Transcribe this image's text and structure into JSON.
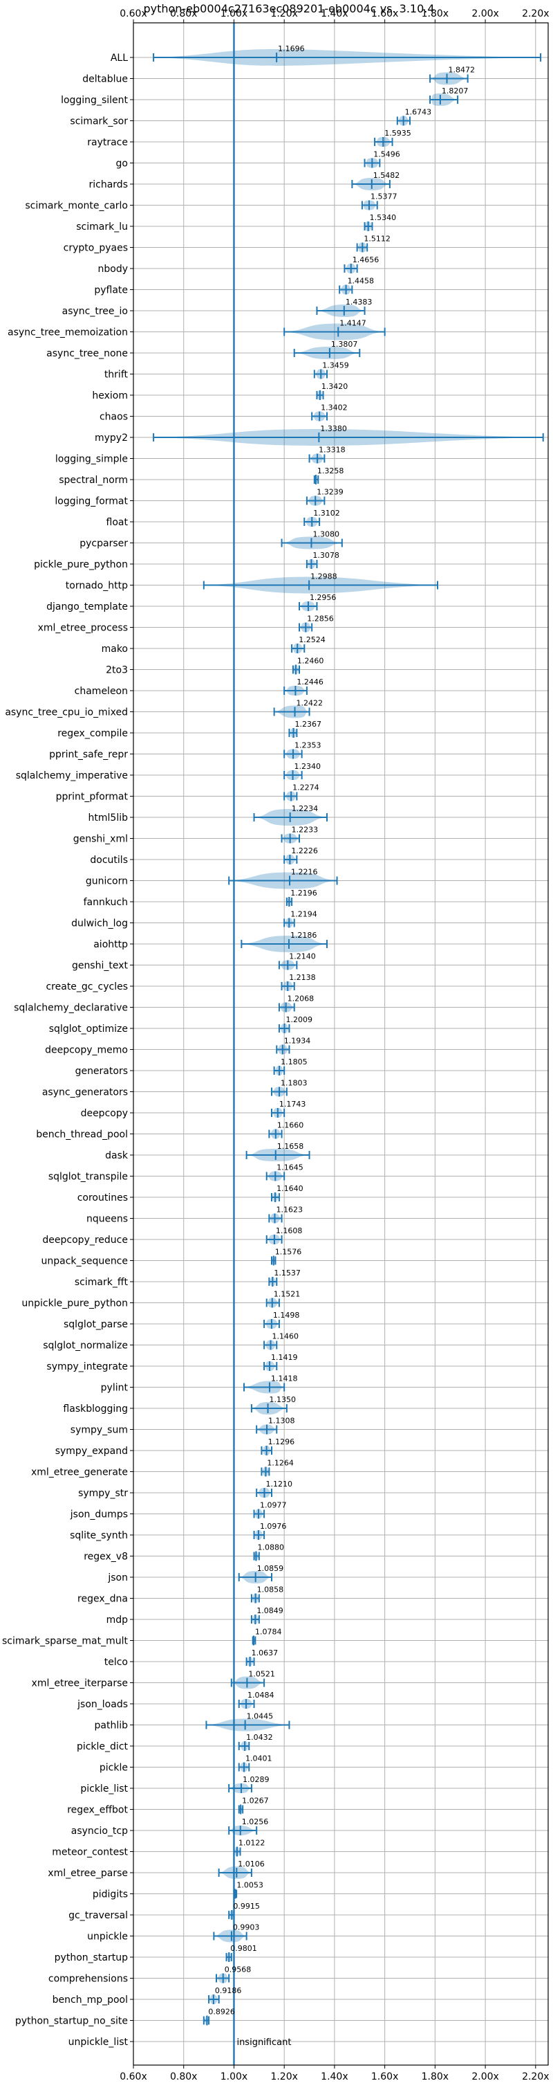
{
  "chart_data": {
    "type": "violin",
    "title": "python-eb0004c27163ec089201-eb0004c vs. 3.10.4",
    "xlim": [
      0.6,
      2.25
    ],
    "x_ticks": [
      0.6,
      0.8,
      1.0,
      1.2,
      1.4,
      1.6,
      1.8,
      2.0,
      2.2
    ],
    "x_tick_labels": [
      "0.60x",
      "0.80x",
      "1.00x",
      "1.20x",
      "1.40x",
      "1.60x",
      "1.80x",
      "2.00x",
      "2.20x"
    ],
    "reference_line": 1.0,
    "grid": true,
    "colors": {
      "series": "#1f77b4",
      "grid": "#b0b0b0"
    },
    "benchmarks": [
      {
        "name": "ALL",
        "value": 1.1696,
        "min": 0.68,
        "max": 2.22,
        "spread": 0.22
      },
      {
        "name": "deltablue",
        "value": 1.8472,
        "min": 1.78,
        "max": 1.93,
        "spread": 0.06
      },
      {
        "name": "logging_silent",
        "value": 1.8207,
        "min": 1.78,
        "max": 1.89,
        "spread": 0.05
      },
      {
        "name": "scimark_sor",
        "value": 1.6743,
        "min": 1.65,
        "max": 1.7,
        "spread": 0.02
      },
      {
        "name": "raytrace",
        "value": 1.5935,
        "min": 1.56,
        "max": 1.63,
        "spread": 0.03
      },
      {
        "name": "go",
        "value": 1.5496,
        "min": 1.52,
        "max": 1.58,
        "spread": 0.03
      },
      {
        "name": "richards",
        "value": 1.5482,
        "min": 1.47,
        "max": 1.62,
        "spread": 0.06
      },
      {
        "name": "scimark_monte_carlo",
        "value": 1.5377,
        "min": 1.51,
        "max": 1.57,
        "spread": 0.03
      },
      {
        "name": "scimark_lu",
        "value": 1.534,
        "min": 1.52,
        "max": 1.55,
        "spread": 0.015
      },
      {
        "name": "crypto_pyaes",
        "value": 1.5112,
        "min": 1.49,
        "max": 1.53,
        "spread": 0.02
      },
      {
        "name": "nbody",
        "value": 1.4656,
        "min": 1.44,
        "max": 1.49,
        "spread": 0.02
      },
      {
        "name": "pyflate",
        "value": 1.4458,
        "min": 1.42,
        "max": 1.47,
        "spread": 0.02
      },
      {
        "name": "async_tree_io",
        "value": 1.4383,
        "min": 1.33,
        "max": 1.52,
        "spread": 0.07
      },
      {
        "name": "async_tree_memoization",
        "value": 1.4147,
        "min": 1.2,
        "max": 1.6,
        "spread": 0.14
      },
      {
        "name": "async_tree_none",
        "value": 1.3807,
        "min": 1.24,
        "max": 1.5,
        "spread": 0.1
      },
      {
        "name": "thrift",
        "value": 1.3459,
        "min": 1.32,
        "max": 1.37,
        "spread": 0.02
      },
      {
        "name": "hexiom",
        "value": 1.342,
        "min": 1.33,
        "max": 1.355,
        "spread": 0.01
      },
      {
        "name": "chaos",
        "value": 1.3402,
        "min": 1.31,
        "max": 1.37,
        "spread": 0.025
      },
      {
        "name": "mypy2",
        "value": 1.338,
        "min": 0.68,
        "max": 2.23,
        "spread": 0.35
      },
      {
        "name": "logging_simple",
        "value": 1.3318,
        "min": 1.3,
        "max": 1.36,
        "spread": 0.025
      },
      {
        "name": "spectral_norm",
        "value": 1.3258,
        "min": 1.32,
        "max": 1.335,
        "spread": 0.007
      },
      {
        "name": "logging_format",
        "value": 1.3239,
        "min": 1.29,
        "max": 1.36,
        "spread": 0.03
      },
      {
        "name": "float",
        "value": 1.3102,
        "min": 1.28,
        "max": 1.34,
        "spread": 0.025
      },
      {
        "name": "pycparser",
        "value": 1.308,
        "min": 1.19,
        "max": 1.43,
        "spread": 0.1
      },
      {
        "name": "pickle_pure_python",
        "value": 1.3078,
        "min": 1.29,
        "max": 1.33,
        "spread": 0.015
      },
      {
        "name": "tornado_http",
        "value": 1.2988,
        "min": 0.88,
        "max": 1.81,
        "spread": 0.22
      },
      {
        "name": "django_template",
        "value": 1.2956,
        "min": 1.26,
        "max": 1.33,
        "spread": 0.03
      },
      {
        "name": "xml_etree_process",
        "value": 1.2856,
        "min": 1.26,
        "max": 1.31,
        "spread": 0.02
      },
      {
        "name": "mako",
        "value": 1.2524,
        "min": 1.23,
        "max": 1.28,
        "spread": 0.02
      },
      {
        "name": "2to3",
        "value": 1.246,
        "min": 1.235,
        "max": 1.26,
        "spread": 0.01
      },
      {
        "name": "chameleon",
        "value": 1.2446,
        "min": 1.2,
        "max": 1.29,
        "spread": 0.04
      },
      {
        "name": "async_tree_cpu_io_mixed",
        "value": 1.2422,
        "min": 1.16,
        "max": 1.3,
        "spread": 0.06
      },
      {
        "name": "regex_compile",
        "value": 1.2367,
        "min": 1.22,
        "max": 1.25,
        "spread": 0.012
      },
      {
        "name": "pprint_safe_repr",
        "value": 1.2353,
        "min": 1.2,
        "max": 1.27,
        "spread": 0.03
      },
      {
        "name": "sqlalchemy_imperative",
        "value": 1.234,
        "min": 1.2,
        "max": 1.27,
        "spread": 0.03
      },
      {
        "name": "pprint_pformat",
        "value": 1.2274,
        "min": 1.2,
        "max": 1.25,
        "spread": 0.02
      },
      {
        "name": "html5lib",
        "value": 1.2234,
        "min": 1.08,
        "max": 1.37,
        "spread": 0.11
      },
      {
        "name": "genshi_xml",
        "value": 1.2233,
        "min": 1.19,
        "max": 1.26,
        "spread": 0.03
      },
      {
        "name": "docutils",
        "value": 1.2226,
        "min": 1.2,
        "max": 1.25,
        "spread": 0.02
      },
      {
        "name": "gunicorn",
        "value": 1.2216,
        "min": 0.98,
        "max": 1.41,
        "spread": 0.15
      },
      {
        "name": "fannkuch",
        "value": 1.2196,
        "min": 1.21,
        "max": 1.23,
        "spread": 0.008
      },
      {
        "name": "dulwich_log",
        "value": 1.2194,
        "min": 1.2,
        "max": 1.24,
        "spread": 0.015
      },
      {
        "name": "aiohttp",
        "value": 1.2186,
        "min": 1.03,
        "max": 1.37,
        "spread": 0.12
      },
      {
        "name": "genshi_text",
        "value": 1.214,
        "min": 1.18,
        "max": 1.25,
        "spread": 0.03
      },
      {
        "name": "create_gc_cycles",
        "value": 1.2138,
        "min": 1.19,
        "max": 1.24,
        "spread": 0.02
      },
      {
        "name": "sqlalchemy_declarative",
        "value": 1.2068,
        "min": 1.18,
        "max": 1.24,
        "spread": 0.025
      },
      {
        "name": "sqlglot_optimize",
        "value": 1.2009,
        "min": 1.18,
        "max": 1.22,
        "spread": 0.015
      },
      {
        "name": "deepcopy_memo",
        "value": 1.1934,
        "min": 1.17,
        "max": 1.22,
        "spread": 0.02
      },
      {
        "name": "generators",
        "value": 1.1805,
        "min": 1.16,
        "max": 1.2,
        "spread": 0.015
      },
      {
        "name": "async_generators",
        "value": 1.1803,
        "min": 1.15,
        "max": 1.21,
        "spread": 0.025
      },
      {
        "name": "deepcopy",
        "value": 1.1743,
        "min": 1.15,
        "max": 1.2,
        "spread": 0.02
      },
      {
        "name": "bench_thread_pool",
        "value": 1.166,
        "min": 1.14,
        "max": 1.19,
        "spread": 0.02
      },
      {
        "name": "dask",
        "value": 1.1658,
        "min": 1.05,
        "max": 1.3,
        "spread": 0.1
      },
      {
        "name": "sqlglot_transpile",
        "value": 1.1645,
        "min": 1.13,
        "max": 1.2,
        "spread": 0.03
      },
      {
        "name": "coroutines",
        "value": 1.164,
        "min": 1.15,
        "max": 1.18,
        "spread": 0.01
      },
      {
        "name": "nqueens",
        "value": 1.1623,
        "min": 1.14,
        "max": 1.19,
        "spread": 0.02
      },
      {
        "name": "deepcopy_reduce",
        "value": 1.1608,
        "min": 1.13,
        "max": 1.19,
        "spread": 0.025
      },
      {
        "name": "unpack_sequence",
        "value": 1.1576,
        "min": 1.15,
        "max": 1.165,
        "spread": 0.006
      },
      {
        "name": "scimark_fft",
        "value": 1.1537,
        "min": 1.14,
        "max": 1.17,
        "spread": 0.01
      },
      {
        "name": "unpickle_pure_python",
        "value": 1.1521,
        "min": 1.13,
        "max": 1.18,
        "spread": 0.02
      },
      {
        "name": "sqlglot_parse",
        "value": 1.1498,
        "min": 1.12,
        "max": 1.18,
        "spread": 0.025
      },
      {
        "name": "sqlglot_normalize",
        "value": 1.146,
        "min": 1.12,
        "max": 1.17,
        "spread": 0.02
      },
      {
        "name": "sympy_integrate",
        "value": 1.1419,
        "min": 1.12,
        "max": 1.17,
        "spread": 0.02
      },
      {
        "name": "pylint",
        "value": 1.1418,
        "min": 1.04,
        "max": 1.2,
        "spread": 0.06
      },
      {
        "name": "flaskblogging",
        "value": 1.135,
        "min": 1.07,
        "max": 1.21,
        "spread": 0.05
      },
      {
        "name": "sympy_sum",
        "value": 1.1308,
        "min": 1.09,
        "max": 1.17,
        "spread": 0.03
      },
      {
        "name": "sympy_expand",
        "value": 1.1296,
        "min": 1.11,
        "max": 1.15,
        "spread": 0.015
      },
      {
        "name": "xml_etree_generate",
        "value": 1.1264,
        "min": 1.11,
        "max": 1.14,
        "spread": 0.012
      },
      {
        "name": "sympy_str",
        "value": 1.121,
        "min": 1.09,
        "max": 1.15,
        "spread": 0.025
      },
      {
        "name": "json_dumps",
        "value": 1.0977,
        "min": 1.08,
        "max": 1.12,
        "spread": 0.015
      },
      {
        "name": "sqlite_synth",
        "value": 1.0976,
        "min": 1.08,
        "max": 1.12,
        "spread": 0.015
      },
      {
        "name": "regex_v8",
        "value": 1.088,
        "min": 1.08,
        "max": 1.1,
        "spread": 0.008
      },
      {
        "name": "json",
        "value": 1.0859,
        "min": 1.02,
        "max": 1.15,
        "spread": 0.05
      },
      {
        "name": "regex_dna",
        "value": 1.0858,
        "min": 1.07,
        "max": 1.1,
        "spread": 0.012
      },
      {
        "name": "mdp",
        "value": 1.0849,
        "min": 1.07,
        "max": 1.1,
        "spread": 0.01
      },
      {
        "name": "scimark_sparse_mat_mult",
        "value": 1.0784,
        "min": 1.075,
        "max": 1.085,
        "spread": 0.004
      },
      {
        "name": "telco",
        "value": 1.0637,
        "min": 1.05,
        "max": 1.08,
        "spread": 0.01
      },
      {
        "name": "xml_etree_iterparse",
        "value": 1.0521,
        "min": 0.99,
        "max": 1.12,
        "spread": 0.05
      },
      {
        "name": "json_loads",
        "value": 1.0484,
        "min": 1.02,
        "max": 1.08,
        "spread": 0.025
      },
      {
        "name": "pathlib",
        "value": 1.0445,
        "min": 0.89,
        "max": 1.22,
        "spread": 0.09
      },
      {
        "name": "pickle_dict",
        "value": 1.0432,
        "min": 1.02,
        "max": 1.06,
        "spread": 0.015
      },
      {
        "name": "pickle",
        "value": 1.0401,
        "min": 1.02,
        "max": 1.06,
        "spread": 0.015
      },
      {
        "name": "pickle_list",
        "value": 1.0289,
        "min": 0.98,
        "max": 1.07,
        "spread": 0.035
      },
      {
        "name": "regex_effbot",
        "value": 1.0267,
        "min": 1.02,
        "max": 1.035,
        "spread": 0.006
      },
      {
        "name": "asyncio_tcp",
        "value": 1.0256,
        "min": 0.98,
        "max": 1.09,
        "spread": 0.04
      },
      {
        "name": "meteor_contest",
        "value": 1.0122,
        "min": 1.0,
        "max": 1.025,
        "spread": 0.01
      },
      {
        "name": "xml_etree_parse",
        "value": 1.0106,
        "min": 0.94,
        "max": 1.07,
        "spread": 0.05
      },
      {
        "name": "pidigits",
        "value": 1.0053,
        "min": 1.0,
        "max": 1.01,
        "spread": 0.004
      },
      {
        "name": "gc_traversal",
        "value": 0.9915,
        "min": 0.98,
        "max": 1.0,
        "spread": 0.008
      },
      {
        "name": "unpickle",
        "value": 0.9903,
        "min": 0.92,
        "max": 1.05,
        "spread": 0.05
      },
      {
        "name": "python_startup",
        "value": 0.9801,
        "min": 0.97,
        "max": 0.99,
        "spread": 0.008
      },
      {
        "name": "comprehensions",
        "value": 0.9568,
        "min": 0.93,
        "max": 0.98,
        "spread": 0.02
      },
      {
        "name": "bench_mp_pool",
        "value": 0.9186,
        "min": 0.9,
        "max": 0.94,
        "spread": 0.015
      },
      {
        "name": "python_startup_no_site",
        "value": 0.8926,
        "min": 0.88,
        "max": 0.9,
        "spread": 0.008
      },
      {
        "name": "unpickle_list",
        "value": 1.0,
        "min": 1.0,
        "max": 1.0,
        "spread": 0,
        "note": "insignificant"
      }
    ]
  }
}
